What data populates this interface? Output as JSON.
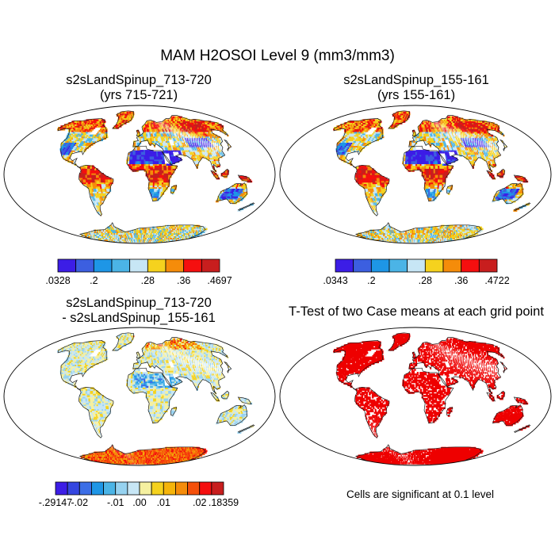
{
  "title": "MAM H2OSOI Level 9 (mm3/mm3)",
  "chart_data": [
    {
      "type": "heatmap",
      "title": "s2sLandSpinup_713-720",
      "subtitle": "(yrs 715-721)",
      "colorbar": {
        "min": 0.0328,
        "max": 0.4697,
        "labels": [
          ".0328",
          ".2",
          ".28",
          ".36",
          ".4697"
        ],
        "colors": [
          "#3c1de6",
          "#3c5fe0",
          "#1e96e6",
          "#4bb4e6",
          "#c7e6f5",
          "#f5d21e",
          "#f58c0a",
          "#f50f0f",
          "#c81e1e"
        ]
      }
    },
    {
      "type": "heatmap",
      "title": "s2sLandSpinup_155-161",
      "subtitle": "(yrs 155-161)",
      "colorbar": {
        "min": 0.0343,
        "max": 0.4722,
        "labels": [
          ".0343",
          ".2",
          ".28",
          ".36",
          ".4722"
        ],
        "colors": [
          "#3c1de6",
          "#3c5fe0",
          "#1e96e6",
          "#4bb4e6",
          "#c7e6f5",
          "#f5d21e",
          "#f58c0a",
          "#f50f0f",
          "#c81e1e"
        ]
      }
    },
    {
      "type": "heatmap",
      "title": "s2sLandSpinup_713-720",
      "subtitle": "- s2sLandSpinup_155-161",
      "colorbar": {
        "min": -0.29147,
        "max": 0.18359,
        "labels": [
          "-.29147",
          "-.02",
          "-.01",
          ".00",
          ".01",
          ".02",
          ".18359"
        ],
        "colors": [
          "#3c1de6",
          "#3446e0",
          "#3c6ee6",
          "#1e96e6",
          "#4bb4e6",
          "#96d2f0",
          "#c7e6f5",
          "#f5f0a0",
          "#f5d21e",
          "#f5b40a",
          "#f58c0a",
          "#f5500a",
          "#f50f0f",
          "#c81e1e"
        ]
      }
    },
    {
      "type": "heatmap",
      "title": "T-Test of two Case means at each grid point",
      "note": "Cells are significant at 0.1 level",
      "color": "#ee0000"
    }
  ]
}
